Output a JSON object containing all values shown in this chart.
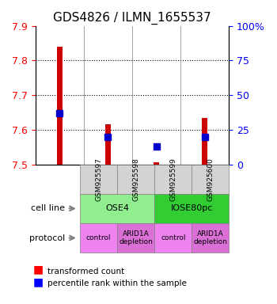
{
  "title": "GDS4826 / ILMN_1655537",
  "samples": [
    "GSM925597",
    "GSM925598",
    "GSM925599",
    "GSM925600"
  ],
  "transformed_counts": [
    7.84,
    7.615,
    7.505,
    7.635
  ],
  "percentile_ranks": [
    37,
    20,
    13,
    20
  ],
  "ylim_left": [
    7.5,
    7.9
  ],
  "ylim_right": [
    0,
    100
  ],
  "yticks_left": [
    7.5,
    7.6,
    7.7,
    7.8,
    7.9
  ],
  "yticks_right": [
    0,
    25,
    50,
    75,
    100
  ],
  "ytick_labels_right": [
    "0",
    "25",
    "50",
    "75",
    "100%"
  ],
  "cell_lines": [
    {
      "label": "OSE4",
      "span": [
        0,
        2
      ],
      "color": "#90EE90"
    },
    {
      "label": "IOSE80pc",
      "span": [
        2,
        4
      ],
      "color": "#32CD32"
    }
  ],
  "protocols": [
    {
      "label": "control",
      "span": [
        0,
        1
      ],
      "color": "#EE82EE"
    },
    {
      "label": "ARID1A\ndepletion",
      "span": [
        1,
        2
      ],
      "color": "#DA70D6"
    },
    {
      "label": "control",
      "span": [
        2,
        3
      ],
      "color": "#EE82EE"
    },
    {
      "label": "ARID1A\ndepletion",
      "span": [
        3,
        4
      ],
      "color": "#DA70D6"
    }
  ],
  "bar_color": "#CC0000",
  "dot_color": "#0000CC",
  "bar_width": 0.12,
  "dot_size": 40,
  "grid_color": "#000000",
  "ax_bg": "#E8E8E8",
  "sample_bg": "#D3D3D3"
}
